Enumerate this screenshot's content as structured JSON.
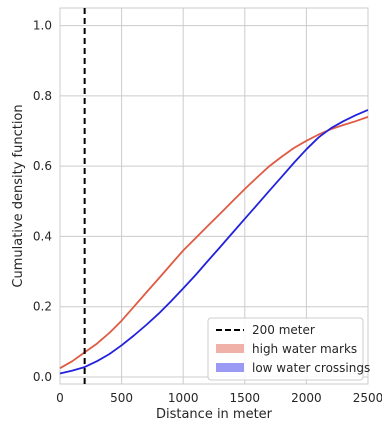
{
  "chart_data": {
    "type": "line",
    "xlabel": "Distance in meter",
    "ylabel": "Cumulative density function",
    "xlim": [
      0,
      2500
    ],
    "ylim": [
      -0.02,
      1.05
    ],
    "xticks": [
      0,
      500,
      1000,
      1500,
      2000,
      2500
    ],
    "yticks": [
      0.0,
      0.2,
      0.4,
      0.6,
      0.8,
      1.0
    ],
    "xtick_labels": [
      "0",
      "500",
      "1000",
      "1500",
      "2000",
      "2500"
    ],
    "ytick_labels": [
      "0.0",
      "0.2",
      "0.4",
      "0.6",
      "0.8",
      "1.0"
    ],
    "grid": true,
    "legend_position": "lower-right",
    "vline": {
      "name": "200 meter",
      "x": 200,
      "color": "#000000",
      "style": "dashed"
    },
    "series": [
      {
        "name": "high water marks",
        "color": "#e05a44",
        "legend_color": "#efb1a8",
        "x": [
          0,
          100,
          200,
          300,
          400,
          500,
          600,
          700,
          800,
          900,
          1000,
          1100,
          1200,
          1300,
          1400,
          1500,
          1600,
          1700,
          1800,
          1900,
          2000,
          2100,
          2200,
          2300,
          2400,
          2500
        ],
        "y": [
          0.025,
          0.045,
          0.07,
          0.095,
          0.125,
          0.16,
          0.2,
          0.24,
          0.28,
          0.32,
          0.36,
          0.395,
          0.43,
          0.465,
          0.5,
          0.535,
          0.568,
          0.6,
          0.627,
          0.652,
          0.672,
          0.69,
          0.705,
          0.717,
          0.728,
          0.74
        ]
      },
      {
        "name": "low water crossings",
        "color": "#2222dd",
        "legend_color": "#9a9af5",
        "x": [
          0,
          100,
          200,
          300,
          400,
          500,
          600,
          700,
          800,
          900,
          1000,
          1100,
          1200,
          1300,
          1400,
          1500,
          1600,
          1700,
          1800,
          1900,
          2000,
          2100,
          2200,
          2300,
          2400,
          2500
        ],
        "y": [
          0.01,
          0.018,
          0.028,
          0.045,
          0.065,
          0.09,
          0.118,
          0.148,
          0.18,
          0.215,
          0.252,
          0.29,
          0.33,
          0.37,
          0.41,
          0.45,
          0.49,
          0.53,
          0.57,
          0.61,
          0.648,
          0.682,
          0.708,
          0.728,
          0.745,
          0.76
        ]
      }
    ]
  }
}
